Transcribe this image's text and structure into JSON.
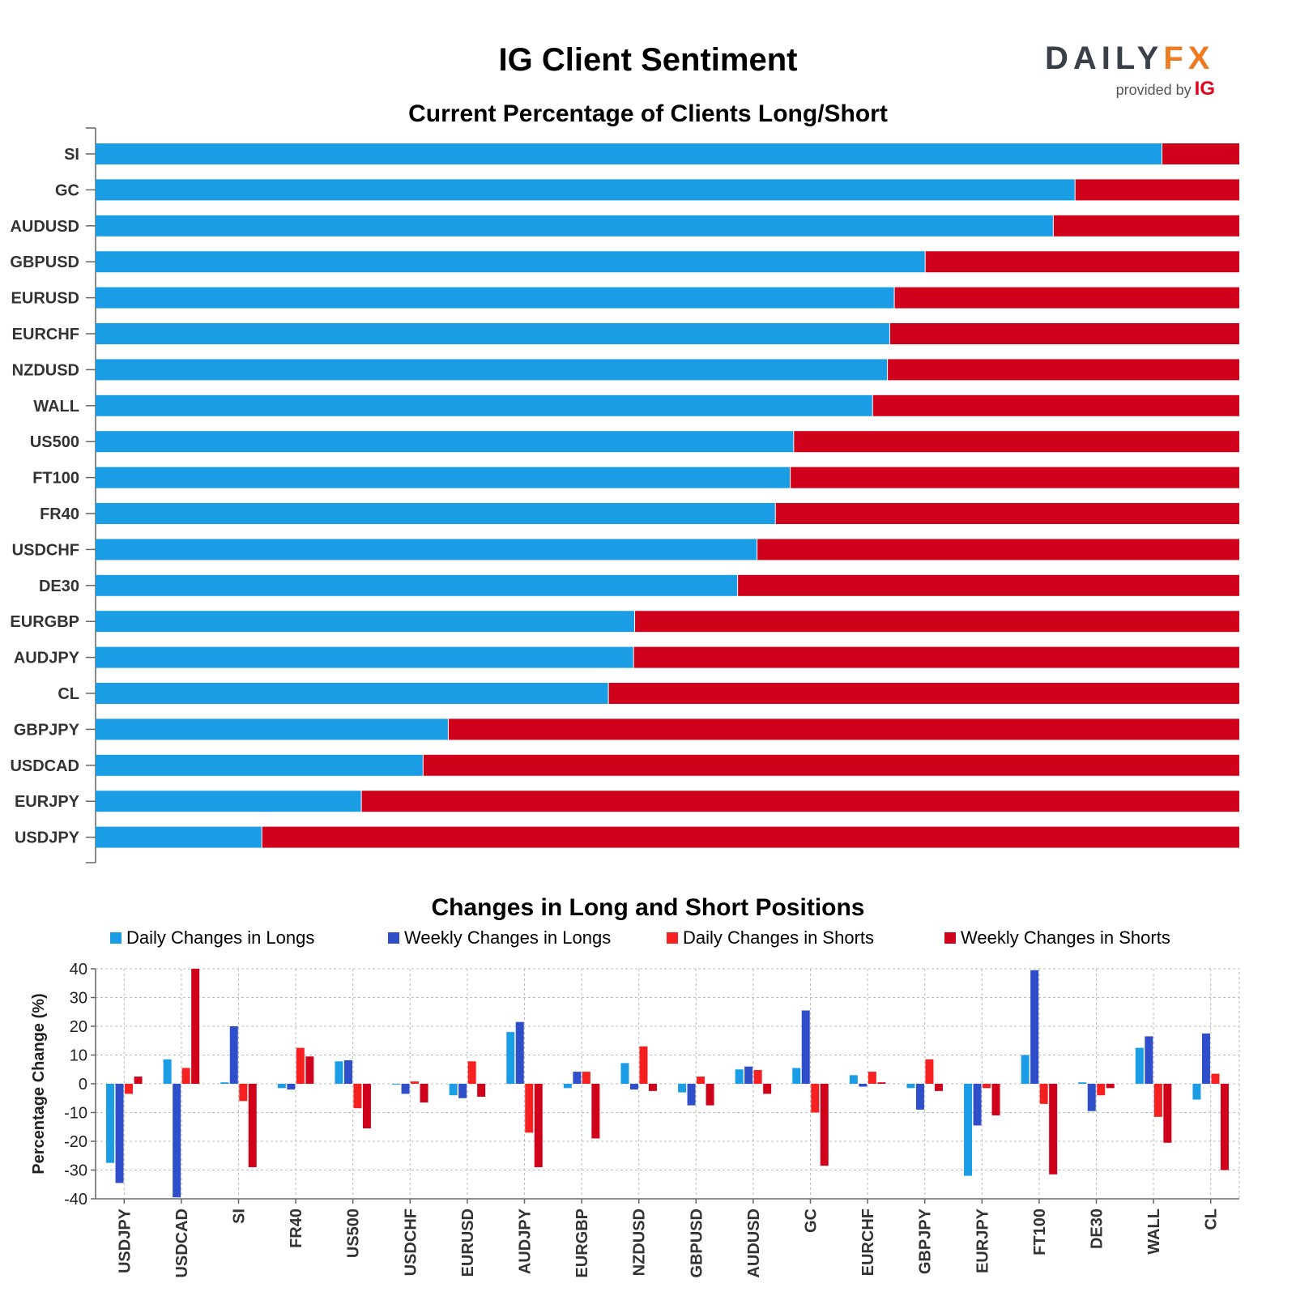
{
  "header": {
    "title": "IG Client Sentiment",
    "logo": {
      "word_main": "DAILY",
      "word_fx": "FX",
      "provided_by": "provided by",
      "brand": "IG"
    }
  },
  "colors": {
    "long": "#1b9de6",
    "short": "#d0021b",
    "daily_longs": "#1b9de6",
    "weekly_longs": "#2e4fc9",
    "daily_shorts": "#f5201f",
    "weekly_shorts": "#d0021b"
  },
  "chart_data": [
    {
      "type": "bar",
      "orientation": "horizontal",
      "stacked": true,
      "title": "Current Percentage of Clients Long/Short",
      "categories": [
        "SI",
        "GC",
        "AUDUSD",
        "GBPUSD",
        "EURUSD",
        "EURCHF",
        "NZDUSD",
        "WALL",
        "US500",
        "FT100",
        "FR40",
        "USDCHF",
        "DE30",
        "EURGBP",
        "AUDJPY",
        "CL",
        "GBPJPY",
        "USDCAD",
        "EURJPY",
        "USDJPY"
      ],
      "series": [
        {
          "key": "long",
          "values": [
            93.2,
            85.6,
            83.7,
            72.5,
            69.8,
            69.4,
            69.2,
            67.9,
            61.0,
            60.7,
            59.4,
            57.8,
            56.1,
            47.1,
            47.0,
            44.8,
            30.8,
            28.6,
            23.2,
            14.5
          ]
        },
        {
          "key": "short",
          "values": [
            6.8,
            14.4,
            16.3,
            27.5,
            30.2,
            30.6,
            30.8,
            32.1,
            39.0,
            39.3,
            40.6,
            42.2,
            43.9,
            52.9,
            53.0,
            55.2,
            69.2,
            71.4,
            76.8,
            85.5
          ]
        }
      ],
      "xlim": [
        0,
        100
      ],
      "grid": false
    },
    {
      "type": "bar",
      "title": "Changes in Long and Short Positions",
      "ylabel": "Percentage Change (%)",
      "ylim": [
        -40,
        40
      ],
      "yticks": [
        40,
        30,
        20,
        10,
        0,
        -10,
        -20,
        -30,
        -40
      ],
      "grid": true,
      "legend_position": "top",
      "categories": [
        "USDJPY",
        "USDCAD",
        "SI",
        "FR40",
        "US500",
        "USDCHF",
        "EURUSD",
        "AUDJPY",
        "EURGBP",
        "NZDUSD",
        "GBPUSD",
        "AUDUSD",
        "GC",
        "EURCHF",
        "GBPJPY",
        "EURJPY",
        "FT100",
        "DE30",
        "WALL",
        "CL"
      ],
      "series": [
        {
          "name": "Daily Changes in Longs",
          "values": [
            -27.5,
            8.5,
            0.5,
            -1.5,
            7.8,
            0.0,
            -4.0,
            18.0,
            -1.5,
            7.2,
            -3.0,
            5.0,
            5.5,
            3.0,
            -1.5,
            -32.0,
            10.0,
            0.5,
            12.5,
            -5.5
          ]
        },
        {
          "name": "Weekly Changes in Longs",
          "values": [
            -34.5,
            -39.5,
            20.0,
            -2.0,
            8.2,
            -3.5,
            -5.0,
            21.5,
            4.2,
            -2.0,
            -7.5,
            6.0,
            25.5,
            -1.0,
            -9.0,
            -14.5,
            39.5,
            -9.5,
            16.5,
            17.5
          ]
        },
        {
          "name": "Daily Changes in Shorts",
          "values": [
            -3.5,
            5.5,
            -6.0,
            12.5,
            -8.5,
            0.8,
            7.8,
            -17.0,
            4.2,
            13.0,
            2.5,
            4.8,
            -10.0,
            4.2,
            8.5,
            -1.5,
            -7.0,
            -4.0,
            -11.5,
            3.5
          ]
        },
        {
          "name": "Weekly Changes in Shorts",
          "values": [
            2.5,
            40.0,
            -29.0,
            9.5,
            -15.5,
            -6.5,
            -4.5,
            -29.0,
            -19.0,
            -2.5,
            -7.5,
            -3.5,
            -28.5,
            0.5,
            -2.5,
            -11.0,
            -31.5,
            -1.5,
            -20.5,
            -30.0
          ]
        }
      ]
    }
  ]
}
